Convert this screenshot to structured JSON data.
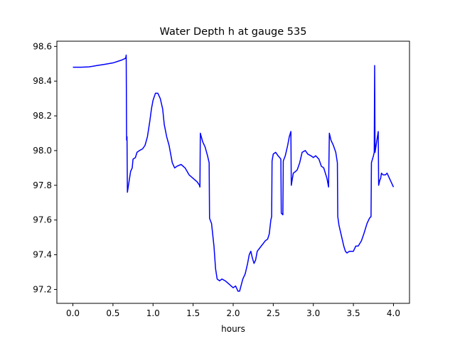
{
  "chart_data": {
    "type": "line",
    "title": "Water Depth h at gauge 535",
    "xlabel": "hours",
    "ylabel": "",
    "xlim": [
      -0.2,
      4.2
    ],
    "ylim": [
      97.12,
      98.63
    ],
    "xticks": [
      0.0,
      0.5,
      1.0,
      1.5,
      2.0,
      2.5,
      3.0,
      3.5,
      4.0
    ],
    "xtick_labels": [
      "0.0",
      "0.5",
      "1.0",
      "1.5",
      "2.0",
      "2.5",
      "3.0",
      "3.5",
      "4.0"
    ],
    "yticks": [
      97.2,
      97.4,
      97.6,
      97.8,
      98.0,
      98.2,
      98.4,
      98.6
    ],
    "ytick_labels": [
      "97.2",
      "97.4",
      "97.6",
      "97.8",
      "98.0",
      "98.2",
      "98.4",
      "98.6"
    ],
    "grid": false,
    "line_color": "#0000ff",
    "series": [
      {
        "points": [
          [
            0.0,
            98.48
          ],
          [
            0.1,
            98.48
          ],
          [
            0.2,
            98.482
          ],
          [
            0.3,
            98.49
          ],
          [
            0.4,
            98.497
          ],
          [
            0.5,
            98.505
          ],
          [
            0.6,
            98.52
          ],
          [
            0.65,
            98.53
          ],
          [
            0.66,
            98.535
          ],
          [
            0.665,
            98.55
          ],
          [
            0.67,
            98.06
          ],
          [
            0.675,
            98.08
          ],
          [
            0.68,
            97.76
          ],
          [
            0.7,
            97.82
          ],
          [
            0.72,
            97.88
          ],
          [
            0.74,
            97.9
          ],
          [
            0.75,
            97.95
          ],
          [
            0.78,
            97.96
          ],
          [
            0.8,
            97.99
          ],
          [
            0.83,
            98.0
          ],
          [
            0.87,
            98.01
          ],
          [
            0.9,
            98.03
          ],
          [
            0.93,
            98.08
          ],
          [
            0.96,
            98.17
          ],
          [
            0.98,
            98.24
          ],
          [
            1.0,
            98.29
          ],
          [
            1.03,
            98.33
          ],
          [
            1.06,
            98.33
          ],
          [
            1.09,
            98.3
          ],
          [
            1.12,
            98.24
          ],
          [
            1.14,
            98.15
          ],
          [
            1.17,
            98.08
          ],
          [
            1.2,
            98.03
          ],
          [
            1.22,
            97.98
          ],
          [
            1.24,
            97.93
          ],
          [
            1.27,
            97.9
          ],
          [
            1.3,
            97.91
          ],
          [
            1.35,
            97.92
          ],
          [
            1.4,
            97.9
          ],
          [
            1.45,
            97.86
          ],
          [
            1.5,
            97.84
          ],
          [
            1.55,
            97.82
          ],
          [
            1.58,
            97.8
          ],
          [
            1.585,
            97.79
          ],
          [
            1.59,
            98.1
          ],
          [
            1.62,
            98.05
          ],
          [
            1.65,
            98.02
          ],
          [
            1.68,
            97.97
          ],
          [
            1.7,
            97.93
          ],
          [
            1.705,
            97.61
          ],
          [
            1.73,
            97.58
          ],
          [
            1.76,
            97.45
          ],
          [
            1.78,
            97.32
          ],
          [
            1.8,
            97.26
          ],
          [
            1.83,
            97.25
          ],
          [
            1.86,
            97.26
          ],
          [
            1.9,
            97.25
          ],
          [
            1.95,
            97.23
          ],
          [
            2.0,
            97.21
          ],
          [
            2.03,
            97.22
          ],
          [
            2.06,
            97.19
          ],
          [
            2.08,
            97.19
          ],
          [
            2.12,
            97.26
          ],
          [
            2.15,
            97.29
          ],
          [
            2.18,
            97.35
          ],
          [
            2.2,
            97.4
          ],
          [
            2.22,
            97.42
          ],
          [
            2.24,
            97.38
          ],
          [
            2.26,
            97.35
          ],
          [
            2.28,
            97.37
          ],
          [
            2.3,
            97.42
          ],
          [
            2.35,
            97.45
          ],
          [
            2.4,
            97.48
          ],
          [
            2.43,
            97.49
          ],
          [
            2.45,
            97.52
          ],
          [
            2.47,
            97.6
          ],
          [
            2.48,
            97.62
          ],
          [
            2.485,
            97.94
          ],
          [
            2.5,
            97.98
          ],
          [
            2.53,
            97.99
          ],
          [
            2.56,
            97.97
          ],
          [
            2.58,
            97.96
          ],
          [
            2.595,
            97.95
          ],
          [
            2.6,
            97.64
          ],
          [
            2.62,
            97.63
          ],
          [
            2.625,
            97.94
          ],
          [
            2.65,
            97.97
          ],
          [
            2.68,
            98.03
          ],
          [
            2.7,
            98.08
          ],
          [
            2.72,
            98.11
          ],
          [
            2.725,
            97.8
          ],
          [
            2.75,
            97.87
          ],
          [
            2.78,
            97.88
          ],
          [
            2.8,
            97.89
          ],
          [
            2.83,
            97.93
          ],
          [
            2.86,
            97.99
          ],
          [
            2.9,
            98.0
          ],
          [
            2.93,
            97.98
          ],
          [
            2.97,
            97.97
          ],
          [
            3.0,
            97.96
          ],
          [
            3.03,
            97.97
          ],
          [
            3.07,
            97.95
          ],
          [
            3.1,
            97.91
          ],
          [
            3.13,
            97.9
          ],
          [
            3.17,
            97.84
          ],
          [
            3.19,
            97.79
          ],
          [
            3.2,
            98.1
          ],
          [
            3.22,
            98.06
          ],
          [
            3.25,
            98.03
          ],
          [
            3.28,
            97.99
          ],
          [
            3.3,
            97.93
          ],
          [
            3.305,
            97.62
          ],
          [
            3.32,
            97.57
          ],
          [
            3.35,
            97.51
          ],
          [
            3.38,
            97.45
          ],
          [
            3.4,
            97.42
          ],
          [
            3.42,
            97.41
          ],
          [
            3.45,
            97.42
          ],
          [
            3.5,
            97.42
          ],
          [
            3.53,
            97.45
          ],
          [
            3.56,
            97.45
          ],
          [
            3.6,
            97.48
          ],
          [
            3.63,
            97.52
          ],
          [
            3.67,
            97.58
          ],
          [
            3.7,
            97.61
          ],
          [
            3.72,
            97.62
          ],
          [
            3.725,
            97.93
          ],
          [
            3.75,
            97.97
          ],
          [
            3.76,
            97.99
          ],
          [
            3.765,
            98.49
          ],
          [
            3.77,
            97.99
          ],
          [
            3.79,
            98.05
          ],
          [
            3.81,
            98.11
          ],
          [
            3.815,
            97.8
          ],
          [
            3.83,
            97.83
          ],
          [
            3.84,
            97.84
          ],
          [
            3.85,
            97.87
          ],
          [
            3.87,
            97.86
          ],
          [
            3.9,
            97.86
          ],
          [
            3.92,
            97.87
          ],
          [
            3.95,
            97.84
          ],
          [
            3.98,
            97.81
          ],
          [
            4.0,
            97.79
          ]
        ]
      }
    ]
  }
}
